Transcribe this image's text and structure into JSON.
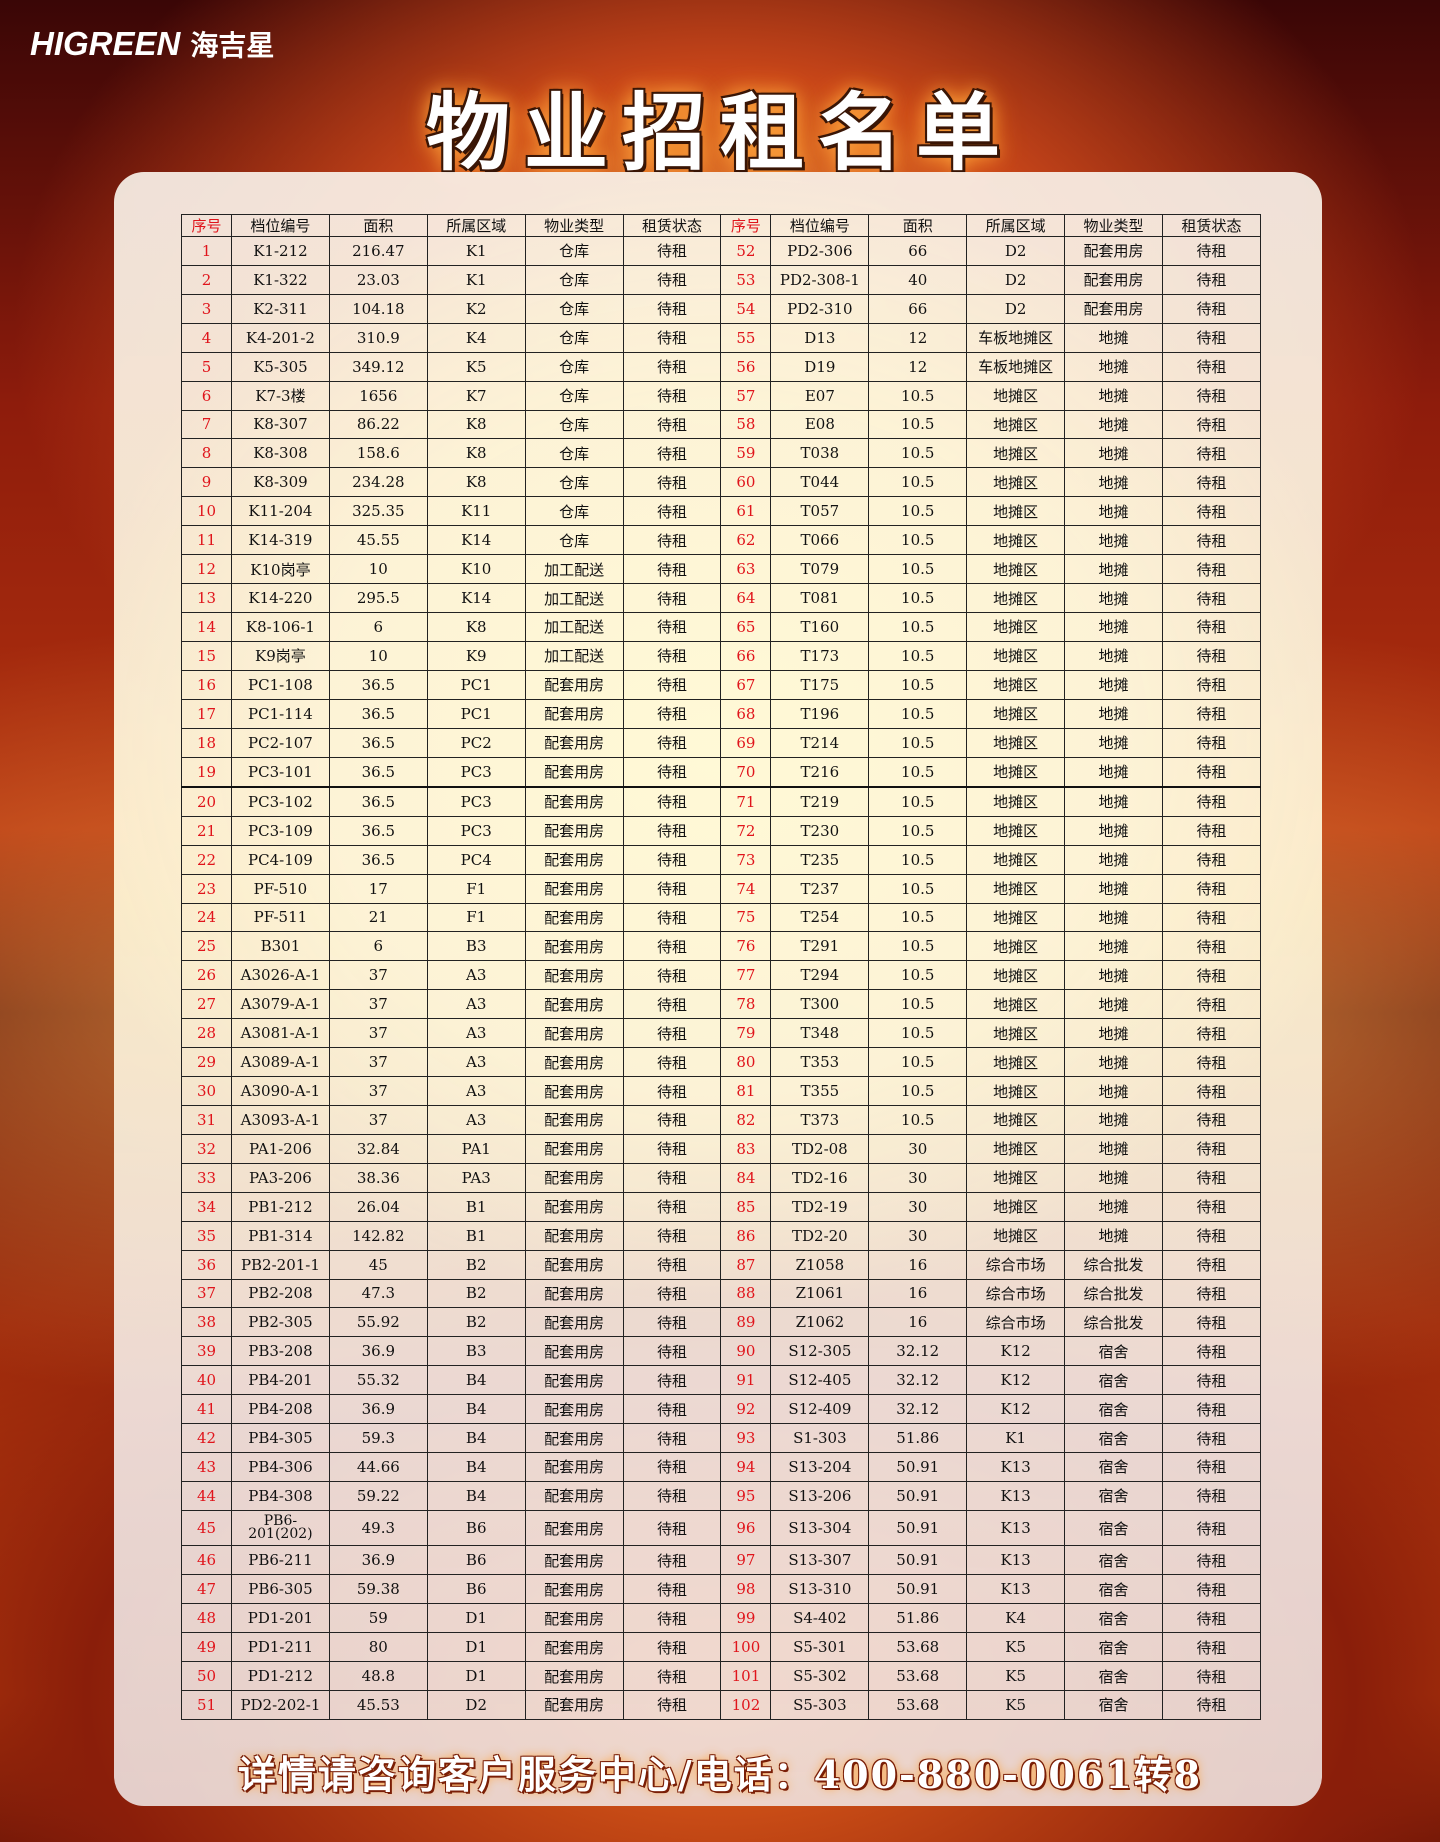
{
  "brand": {
    "name_en": "HIGREEN",
    "name_cn": "海吉星"
  },
  "title": "物业招租名单",
  "headers": [
    "序号",
    "档位编号",
    "面积",
    "所属区域",
    "物业类型",
    "租赁状态"
  ],
  "rows_left": [
    [
      "1",
      "K1-212",
      "216.47",
      "K1",
      "仓库",
      "待租"
    ],
    [
      "2",
      "K1-322",
      "23.03",
      "K1",
      "仓库",
      "待租"
    ],
    [
      "3",
      "K2-311",
      "104.18",
      "K2",
      "仓库",
      "待租"
    ],
    [
      "4",
      "K4-201-2",
      "310.9",
      "K4",
      "仓库",
      "待租"
    ],
    [
      "5",
      "K5-305",
      "349.12",
      "K5",
      "仓库",
      "待租"
    ],
    [
      "6",
      "K7-3楼",
      "1656",
      "K7",
      "仓库",
      "待租"
    ],
    [
      "7",
      "K8-307",
      "86.22",
      "K8",
      "仓库",
      "待租"
    ],
    [
      "8",
      "K8-308",
      "158.6",
      "K8",
      "仓库",
      "待租"
    ],
    [
      "9",
      "K8-309",
      "234.28",
      "K8",
      "仓库",
      "待租"
    ],
    [
      "10",
      "K11-204",
      "325.35",
      "K11",
      "仓库",
      "待租"
    ],
    [
      "11",
      "K14-319",
      "45.55",
      "K14",
      "仓库",
      "待租"
    ],
    [
      "12",
      "K10岗亭",
      "10",
      "K10",
      "加工配送",
      "待租"
    ],
    [
      "13",
      "K14-220",
      "295.5",
      "K14",
      "加工配送",
      "待租"
    ],
    [
      "14",
      "K8-106-1",
      "6",
      "K8",
      "加工配送",
      "待租"
    ],
    [
      "15",
      "K9岗亭",
      "10",
      "K9",
      "加工配送",
      "待租"
    ],
    [
      "16",
      "PC1-108",
      "36.5",
      "PC1",
      "配套用房",
      "待租"
    ],
    [
      "17",
      "PC1-114",
      "36.5",
      "PC1",
      "配套用房",
      "待租"
    ],
    [
      "18",
      "PC2-107",
      "36.5",
      "PC2",
      "配套用房",
      "待租"
    ],
    [
      "19",
      "PC3-101",
      "36.5",
      "PC3",
      "配套用房",
      "待租"
    ],
    [
      "20",
      "PC3-102",
      "36.5",
      "PC3",
      "配套用房",
      "待租"
    ],
    [
      "21",
      "PC3-109",
      "36.5",
      "PC3",
      "配套用房",
      "待租"
    ],
    [
      "22",
      "PC4-109",
      "36.5",
      "PC4",
      "配套用房",
      "待租"
    ],
    [
      "23",
      "PF-510",
      "17",
      "F1",
      "配套用房",
      "待租"
    ],
    [
      "24",
      "PF-511",
      "21",
      "F1",
      "配套用房",
      "待租"
    ],
    [
      "25",
      "B301",
      "6",
      "B3",
      "配套用房",
      "待租"
    ],
    [
      "26",
      "A3026-A-1",
      "37",
      "A3",
      "配套用房",
      "待租"
    ],
    [
      "27",
      "A3079-A-1",
      "37",
      "A3",
      "配套用房",
      "待租"
    ],
    [
      "28",
      "A3081-A-1",
      "37",
      "A3",
      "配套用房",
      "待租"
    ],
    [
      "29",
      "A3089-A-1",
      "37",
      "A3",
      "配套用房",
      "待租"
    ],
    [
      "30",
      "A3090-A-1",
      "37",
      "A3",
      "配套用房",
      "待租"
    ],
    [
      "31",
      "A3093-A-1",
      "37",
      "A3",
      "配套用房",
      "待租"
    ],
    [
      "32",
      "PA1-206",
      "32.84",
      "PA1",
      "配套用房",
      "待租"
    ],
    [
      "33",
      "PA3-206",
      "38.36",
      "PA3",
      "配套用房",
      "待租"
    ],
    [
      "34",
      "PB1-212",
      "26.04",
      "B1",
      "配套用房",
      "待租"
    ],
    [
      "35",
      "PB1-314",
      "142.82",
      "B1",
      "配套用房",
      "待租"
    ],
    [
      "36",
      "PB2-201-1",
      "45",
      "B2",
      "配套用房",
      "待租"
    ],
    [
      "37",
      "PB2-208",
      "47.3",
      "B2",
      "配套用房",
      "待租"
    ],
    [
      "38",
      "PB2-305",
      "55.92",
      "B2",
      "配套用房",
      "待租"
    ],
    [
      "39",
      "PB3-208",
      "36.9",
      "B3",
      "配套用房",
      "待租"
    ],
    [
      "40",
      "PB4-201",
      "55.32",
      "B4",
      "配套用房",
      "待租"
    ],
    [
      "41",
      "PB4-208",
      "36.9",
      "B4",
      "配套用房",
      "待租"
    ],
    [
      "42",
      "PB4-305",
      "59.3",
      "B4",
      "配套用房",
      "待租"
    ],
    [
      "43",
      "PB4-306",
      "44.66",
      "B4",
      "配套用房",
      "待租"
    ],
    [
      "44",
      "PB4-308",
      "59.22",
      "B4",
      "配套用房",
      "待租"
    ],
    [
      "45",
      "PB6-201(202)",
      "49.3",
      "B6",
      "配套用房",
      "待租"
    ],
    [
      "46",
      "PB6-211",
      "36.9",
      "B6",
      "配套用房",
      "待租"
    ],
    [
      "47",
      "PB6-305",
      "59.38",
      "B6",
      "配套用房",
      "待租"
    ],
    [
      "48",
      "PD1-201",
      "59",
      "D1",
      "配套用房",
      "待租"
    ],
    [
      "49",
      "PD1-211",
      "80",
      "D1",
      "配套用房",
      "待租"
    ],
    [
      "50",
      "PD1-212",
      "48.8",
      "D1",
      "配套用房",
      "待租"
    ],
    [
      "51",
      "PD2-202-1",
      "45.53",
      "D2",
      "配套用房",
      "待租"
    ]
  ],
  "rows_right": [
    [
      "52",
      "PD2-306",
      "66",
      "D2",
      "配套用房",
      "待租"
    ],
    [
      "53",
      "PD2-308-1",
      "40",
      "D2",
      "配套用房",
      "待租"
    ],
    [
      "54",
      "PD2-310",
      "66",
      "D2",
      "配套用房",
      "待租"
    ],
    [
      "55",
      "D13",
      "12",
      "车板地摊区",
      "地摊",
      "待租"
    ],
    [
      "56",
      "D19",
      "12",
      "车板地摊区",
      "地摊",
      "待租"
    ],
    [
      "57",
      "E07",
      "10.5",
      "地摊区",
      "地摊",
      "待租"
    ],
    [
      "58",
      "E08",
      "10.5",
      "地摊区",
      "地摊",
      "待租"
    ],
    [
      "59",
      "T038",
      "10.5",
      "地摊区",
      "地摊",
      "待租"
    ],
    [
      "60",
      "T044",
      "10.5",
      "地摊区",
      "地摊",
      "待租"
    ],
    [
      "61",
      "T057",
      "10.5",
      "地摊区",
      "地摊",
      "待租"
    ],
    [
      "62",
      "T066",
      "10.5",
      "地摊区",
      "地摊",
      "待租"
    ],
    [
      "63",
      "T079",
      "10.5",
      "地摊区",
      "地摊",
      "待租"
    ],
    [
      "64",
      "T081",
      "10.5",
      "地摊区",
      "地摊",
      "待租"
    ],
    [
      "65",
      "T160",
      "10.5",
      "地摊区",
      "地摊",
      "待租"
    ],
    [
      "66",
      "T173",
      "10.5",
      "地摊区",
      "地摊",
      "待租"
    ],
    [
      "67",
      "T175",
      "10.5",
      "地摊区",
      "地摊",
      "待租"
    ],
    [
      "68",
      "T196",
      "10.5",
      "地摊区",
      "地摊",
      "待租"
    ],
    [
      "69",
      "T214",
      "10.5",
      "地摊区",
      "地摊",
      "待租"
    ],
    [
      "70",
      "T216",
      "10.5",
      "地摊区",
      "地摊",
      "待租"
    ],
    [
      "71",
      "T219",
      "10.5",
      "地摊区",
      "地摊",
      "待租"
    ],
    [
      "72",
      "T230",
      "10.5",
      "地摊区",
      "地摊",
      "待租"
    ],
    [
      "73",
      "T235",
      "10.5",
      "地摊区",
      "地摊",
      "待租"
    ],
    [
      "74",
      "T237",
      "10.5",
      "地摊区",
      "地摊",
      "待租"
    ],
    [
      "75",
      "T254",
      "10.5",
      "地摊区",
      "地摊",
      "待租"
    ],
    [
      "76",
      "T291",
      "10.5",
      "地摊区",
      "地摊",
      "待租"
    ],
    [
      "77",
      "T294",
      "10.5",
      "地摊区",
      "地摊",
      "待租"
    ],
    [
      "78",
      "T300",
      "10.5",
      "地摊区",
      "地摊",
      "待租"
    ],
    [
      "79",
      "T348",
      "10.5",
      "地摊区",
      "地摊",
      "待租"
    ],
    [
      "80",
      "T353",
      "10.5",
      "地摊区",
      "地摊",
      "待租"
    ],
    [
      "81",
      "T355",
      "10.5",
      "地摊区",
      "地摊",
      "待租"
    ],
    [
      "82",
      "T373",
      "10.5",
      "地摊区",
      "地摊",
      "待租"
    ],
    [
      "83",
      "TD2-08",
      "30",
      "地摊区",
      "地摊",
      "待租"
    ],
    [
      "84",
      "TD2-16",
      "30",
      "地摊区",
      "地摊",
      "待租"
    ],
    [
      "85",
      "TD2-19",
      "30",
      "地摊区",
      "地摊",
      "待租"
    ],
    [
      "86",
      "TD2-20",
      "30",
      "地摊区",
      "地摊",
      "待租"
    ],
    [
      "87",
      "Z1058",
      "16",
      "综合市场",
      "综合批发",
      "待租"
    ],
    [
      "88",
      "Z1061",
      "16",
      "综合市场",
      "综合批发",
      "待租"
    ],
    [
      "89",
      "Z1062",
      "16",
      "综合市场",
      "综合批发",
      "待租"
    ],
    [
      "90",
      "S12-305",
      "32.12",
      "K12",
      "宿舍",
      "待租"
    ],
    [
      "91",
      "S12-405",
      "32.12",
      "K12",
      "宿舍",
      "待租"
    ],
    [
      "92",
      "S12-409",
      "32.12",
      "K12",
      "宿舍",
      "待租"
    ],
    [
      "93",
      "S1-303",
      "51.86",
      "K1",
      "宿舍",
      "待租"
    ],
    [
      "94",
      "S13-204",
      "50.91",
      "K13",
      "宿舍",
      "待租"
    ],
    [
      "95",
      "S13-206",
      "50.91",
      "K13",
      "宿舍",
      "待租"
    ],
    [
      "96",
      "S13-304",
      "50.91",
      "K13",
      "宿舍",
      "待租"
    ],
    [
      "97",
      "S13-307",
      "50.91",
      "K13",
      "宿舍",
      "待租"
    ],
    [
      "98",
      "S13-310",
      "50.91",
      "K13",
      "宿舍",
      "待租"
    ],
    [
      "99",
      "S4-402",
      "51.86",
      "K4",
      "宿舍",
      "待租"
    ],
    [
      "100",
      "S5-301",
      "53.68",
      "K5",
      "宿舍",
      "待租"
    ],
    [
      "101",
      "S5-302",
      "53.68",
      "K5",
      "宿舍",
      "待租"
    ],
    [
      "102",
      "S5-303",
      "53.68",
      "K5",
      "宿舍",
      "待租"
    ]
  ],
  "footer": "详情请咨询客户服务中心/电话：400-880-0061转8",
  "colors": {
    "seq": "#e0141b",
    "title_glow": "#ff8c1a"
  }
}
